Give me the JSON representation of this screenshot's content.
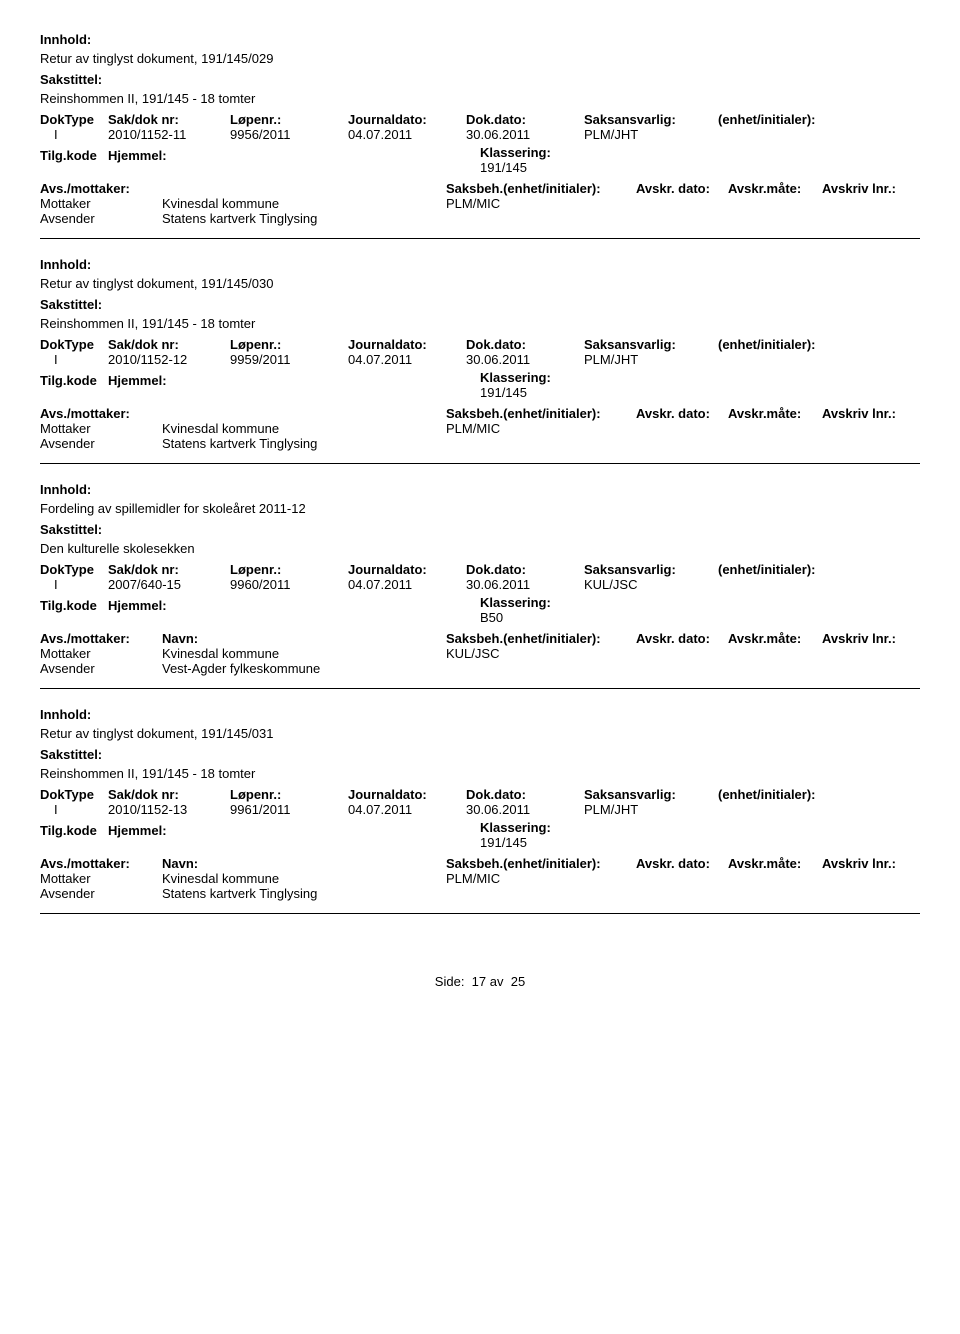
{
  "labels": {
    "innhold": "Innhold:",
    "sakstittel": "Sakstittel:",
    "doktype": "DokType",
    "saknr": "Sak/dok nr:",
    "lopenr": "Løpenr.:",
    "journaldato": "Journaldato:",
    "dokdato": "Dok.dato:",
    "saksansvarlig": "Saksansvarlig:",
    "enhet": "(enhet/initialer):",
    "tilgkode": "Tilg.kode",
    "hjemmel": "Hjemmel:",
    "klassering": "Klassering:",
    "avsmottaker": "Avs./mottaker:",
    "navn": "Navn:",
    "saksbeh": "Saksbeh.(enhet/initialer):",
    "avskr_dato": "Avskr. dato:",
    "avskr_mate": "Avskr.måte:",
    "avskriv_lnr": "Avskriv lnr.:",
    "mottaker": "Mottaker",
    "avsender": "Avsender",
    "side": "Side:",
    "av": "av"
  },
  "records": [
    {
      "innhold": "Retur av tinglyst dokument, 191/145/029",
      "sakstittel": "Reinshommen II, 191/145 - 18 tomter",
      "doktype": "I",
      "saknr": "2010/1152-11",
      "lopenr": "9956/2011",
      "journaldato": "04.07.2011",
      "dokdato": "30.06.2011",
      "saksansvarlig": "PLM/JHT",
      "klassering": "191/145",
      "mottaker_navn": "Kvinesdal kommune",
      "saksbeh": "PLM/MIC",
      "avsender_navn": "Statens kartverk Tinglysing",
      "no_navn_label": true
    },
    {
      "innhold": "Retur av tinglyst dokument, 191/145/030",
      "sakstittel": "Reinshommen II, 191/145 - 18 tomter",
      "doktype": "I",
      "saknr": "2010/1152-12",
      "lopenr": "9959/2011",
      "journaldato": "04.07.2011",
      "dokdato": "30.06.2011",
      "saksansvarlig": "PLM/JHT",
      "klassering": "191/145",
      "mottaker_navn": "Kvinesdal kommune",
      "saksbeh": "PLM/MIC",
      "avsender_navn": "Statens kartverk Tinglysing",
      "no_navn_label": true
    },
    {
      "innhold": "Fordeling av spillemidler for skoleåret 2011-12",
      "sakstittel": "Den kulturelle skolesekken",
      "doktype": "I",
      "saknr": "2007/640-15",
      "lopenr": "9960/2011",
      "journaldato": "04.07.2011",
      "dokdato": "30.06.2011",
      "saksansvarlig": "KUL/JSC",
      "klassering": "B50",
      "mottaker_navn": "Kvinesdal kommune",
      "saksbeh": "KUL/JSC",
      "avsender_navn": "Vest-Agder fylkeskommune",
      "no_navn_label": false
    },
    {
      "innhold": "Retur av tinglyst dokument, 191/145/031",
      "sakstittel": "Reinshommen II, 191/145 - 18 tomter",
      "doktype": "I",
      "saknr": "2010/1152-13",
      "lopenr": "9961/2011",
      "journaldato": "04.07.2011",
      "dokdato": "30.06.2011",
      "saksansvarlig": "PLM/JHT",
      "klassering": "191/145",
      "mottaker_navn": "Kvinesdal kommune",
      "saksbeh": "PLM/MIC",
      "avsender_navn": "Statens kartverk Tinglysing",
      "no_navn_label": false
    }
  ],
  "footer": {
    "page": "17",
    "total": "25"
  }
}
